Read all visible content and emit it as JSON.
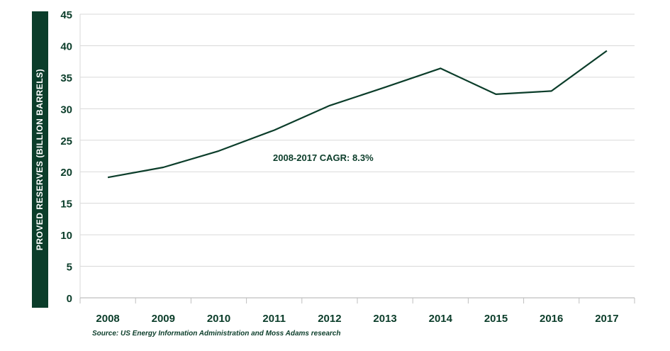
{
  "chart_data": {
    "type": "line",
    "ylabel": "PROVED RESERVES (BILLION BARRELS)",
    "xlabel": "",
    "title": "",
    "x": [
      "2008",
      "2009",
      "2010",
      "2011",
      "2012",
      "2013",
      "2014",
      "2015",
      "2016",
      "2017"
    ],
    "series": [
      {
        "values": [
          19.1,
          20.7,
          23.3,
          26.6,
          30.5,
          33.4,
          36.4,
          32.3,
          32.8,
          39.2
        ]
      }
    ],
    "ylim": [
      0,
      45
    ],
    "yticks": [
      0,
      5,
      10,
      15,
      20,
      25,
      30,
      35,
      40,
      45
    ],
    "grid": "horizontal",
    "annotation": "2008-2017 CAGR: 8.3%",
    "source": "Source: US Energy Information Administration and Moss Adams research",
    "colors": {
      "line": "#0b3d2a",
      "grid": "#d9d9d9",
      "label_box": "#0b3d2a"
    }
  }
}
